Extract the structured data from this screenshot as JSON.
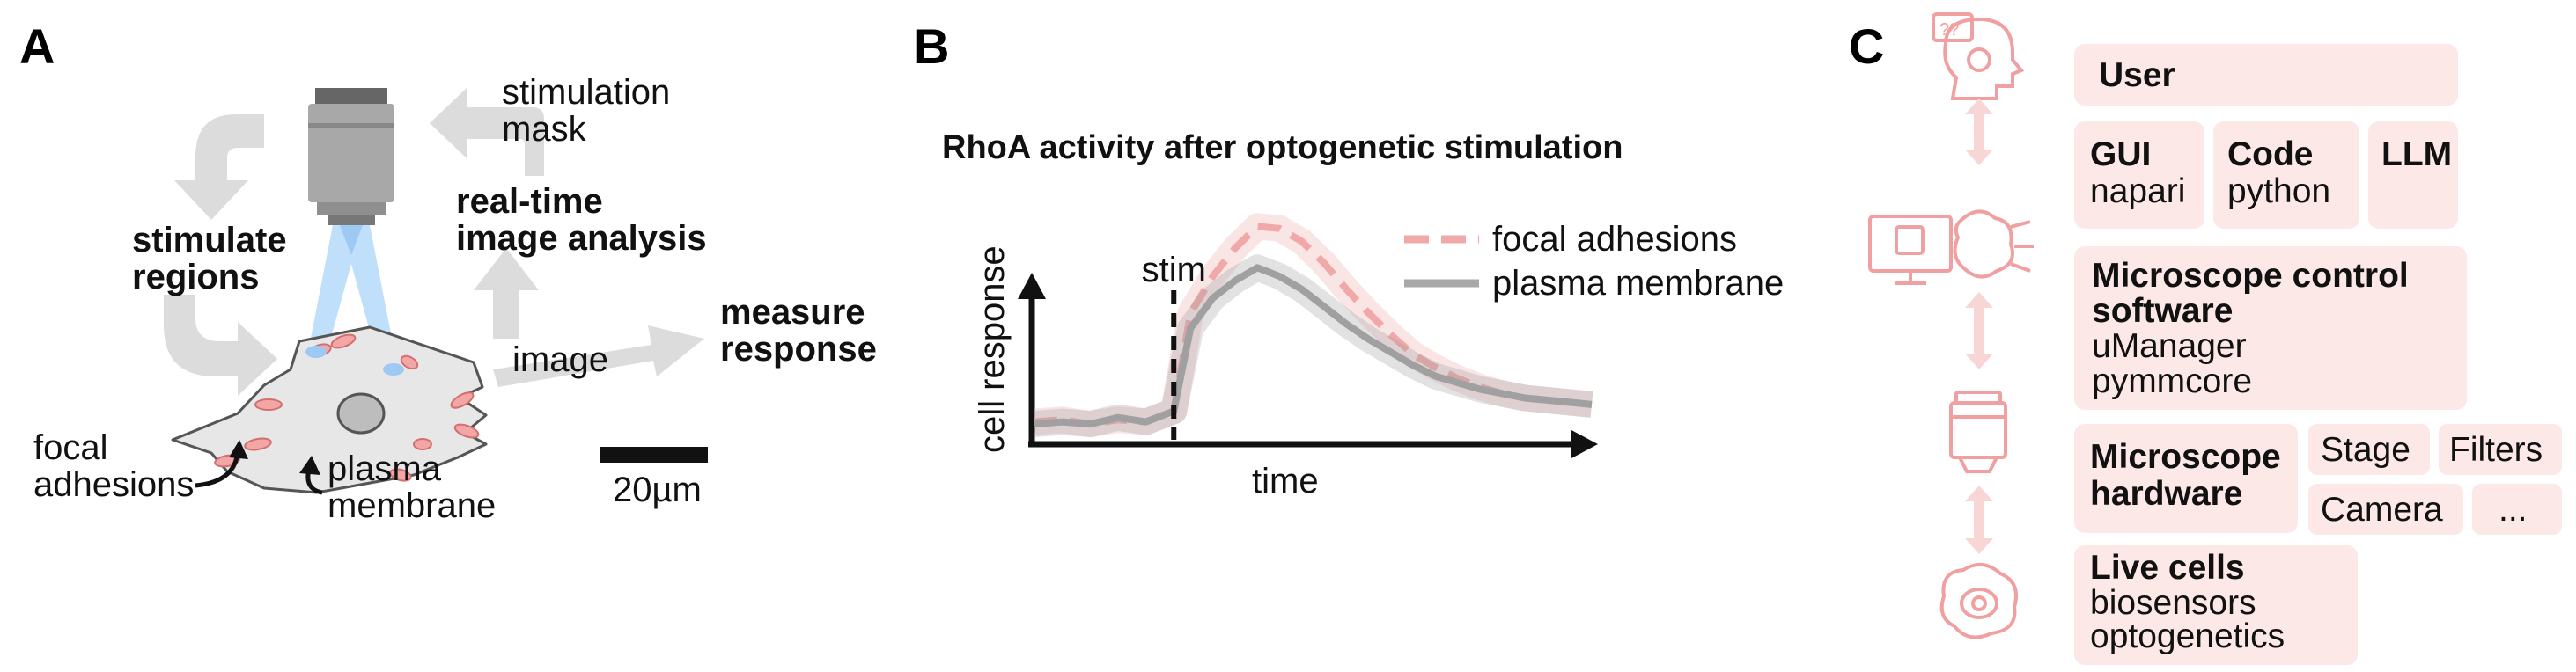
{
  "panel_a": {
    "letter": "A",
    "stimulation_mask": [
      "stimulation",
      "mask"
    ],
    "realtime_analysis": [
      "real-time",
      "image analysis"
    ],
    "stimulate_regions": [
      "stimulate",
      "regions"
    ],
    "image": "image",
    "measure_response": [
      "measure",
      "response"
    ],
    "focal_adhesions": [
      "focal",
      "adhesions"
    ],
    "plasma_membrane": [
      "plasma",
      "membrane"
    ],
    "scale_bar": "20µm"
  },
  "panel_b": {
    "letter": "B",
    "title": "RhoA activity after optogenetic stimulation",
    "ylabel": "cell response",
    "xlabel": "time",
    "stim_label": "stim",
    "legend": [
      "focal adhesions",
      "plasma membrane"
    ]
  },
  "chart_data": {
    "type": "line",
    "title": "RhoA activity after optogenetic stimulation",
    "xlabel": "time",
    "ylabel": "cell response",
    "stim_at": 0.25,
    "x": [
      0,
      0.05,
      0.1,
      0.15,
      0.2,
      0.25,
      0.28,
      0.32,
      0.36,
      0.4,
      0.44,
      0.48,
      0.52,
      0.56,
      0.6,
      0.64,
      0.68,
      0.72,
      0.76,
      0.8,
      0.84,
      0.88,
      0.92,
      0.96,
      1.0
    ],
    "series": [
      {
        "name": "focal adhesions",
        "values": [
          0.05,
          0.06,
          0.04,
          0.06,
          0.05,
          0.1,
          0.55,
          0.72,
          0.85,
          0.95,
          0.94,
          0.88,
          0.78,
          0.66,
          0.55,
          0.45,
          0.36,
          0.3,
          0.25,
          0.21,
          0.18,
          0.16,
          0.15,
          0.14,
          0.13
        ],
        "style": "dashed",
        "color": "#f0a8a8"
      },
      {
        "name": "plasma membrane",
        "values": [
          0.04,
          0.05,
          0.04,
          0.07,
          0.05,
          0.1,
          0.48,
          0.62,
          0.7,
          0.76,
          0.72,
          0.66,
          0.58,
          0.5,
          0.43,
          0.37,
          0.31,
          0.26,
          0.23,
          0.2,
          0.18,
          0.16,
          0.15,
          0.14,
          0.13
        ],
        "style": "solid",
        "color": "#a0a0a0"
      }
    ]
  },
  "panel_c": {
    "letter": "C",
    "user": "User",
    "gui": {
      "title": "GUI",
      "sub": "napari"
    },
    "code": {
      "title": "Code",
      "sub": "python"
    },
    "llm": "LLM",
    "control": {
      "title": [
        "Microscope control",
        "software"
      ],
      "sub": [
        "uManager",
        "pymmcore"
      ]
    },
    "hardware": {
      "title": [
        "Microscope",
        "hardware"
      ]
    },
    "stage": "Stage",
    "filters": "Filters",
    "camera": "Camera",
    "ellipsis": "...",
    "live": {
      "title": "Live cells",
      "sub": [
        "biosensors",
        "optogenetics"
      ]
    },
    "icon_question_marks": "??"
  },
  "colors": {
    "box_fill": "#fce8e6",
    "icon_pink": "#f0a0a0",
    "arrow_gray": "#d8d8d8",
    "objective_gray": "#a8a8a8",
    "light_blue": "#9ec9f5",
    "adhesion_fill": "#f4a6a6",
    "cell_fill": "#e6e6e6"
  }
}
